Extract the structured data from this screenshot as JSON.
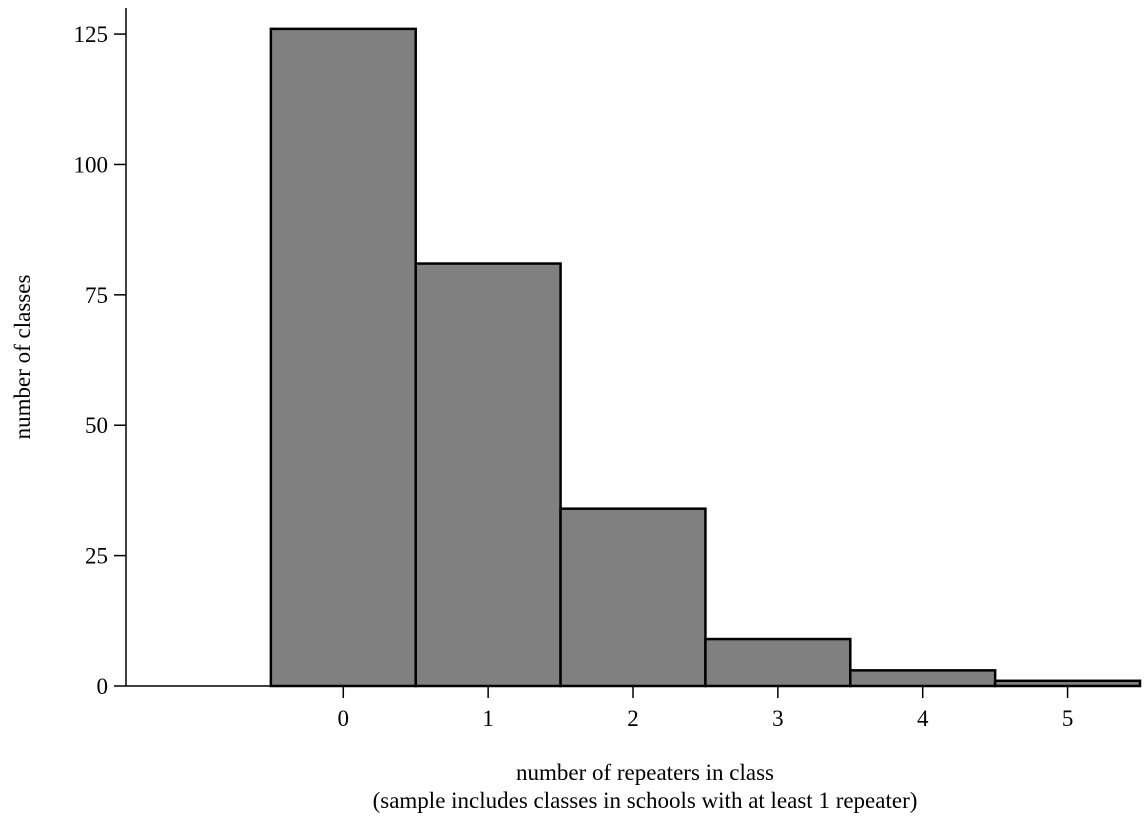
{
  "chart_data": {
    "type": "bar",
    "categories": [
      "0",
      "1",
      "2",
      "3",
      "4",
      "5"
    ],
    "values": [
      126,
      81,
      34,
      9,
      3,
      1
    ],
    "xlabel": "number of repeaters in class",
    "xlabel_note": "(sample includes classes in schools with at least 1 repeater)",
    "ylabel": "number of classes",
    "ylim": [
      0,
      130
    ],
    "xlim": [
      -1.5,
      5.5
    ],
    "yticks": [
      0,
      25,
      50,
      75,
      100,
      125
    ],
    "xticks": [
      0,
      1,
      2,
      3,
      4,
      5
    ],
    "grid": false,
    "legend": "none",
    "bar_color": "#808080",
    "bar_edge_color": "#000000",
    "bar_width": 1
  }
}
